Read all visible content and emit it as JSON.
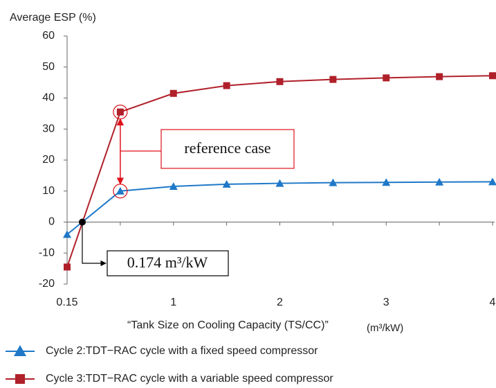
{
  "chart_data": {
    "type": "line",
    "y_label": "Average ESP (%)",
    "x_label": "“Tank Size on Cooling Capacity (TS/CC)”",
    "x_unit": "(m³/kW)",
    "categories": [
      "0.15",
      null,
      "1",
      null,
      "2",
      null,
      "3",
      null,
      "4"
    ],
    "series": [
      {
        "name": "Cycle 2:TDT−RAC cycle with a fixed speed compressor",
        "color": "#1f78c8",
        "marker": "triangle",
        "values": [
          -4,
          10,
          11.5,
          12.2,
          12.5,
          12.7,
          12.8,
          12.9,
          13
        ]
      },
      {
        "name": "Cycle 3:TDT−RAC cycle with a variable speed compressor",
        "color": "#b0202a",
        "marker": "square",
        "values": [
          -14.5,
          35.5,
          41.5,
          44,
          45.3,
          46,
          46.5,
          46.9,
          47.2
        ]
      }
    ],
    "ylim": [
      -20,
      60
    ],
    "yticks": [
      -20,
      -10,
      0,
      10,
      20,
      30,
      40,
      50,
      60
    ],
    "grid": false,
    "legend": "bottom",
    "annotations": {
      "reference": "reference case",
      "crossing": "0.174 m³/kW"
    }
  }
}
